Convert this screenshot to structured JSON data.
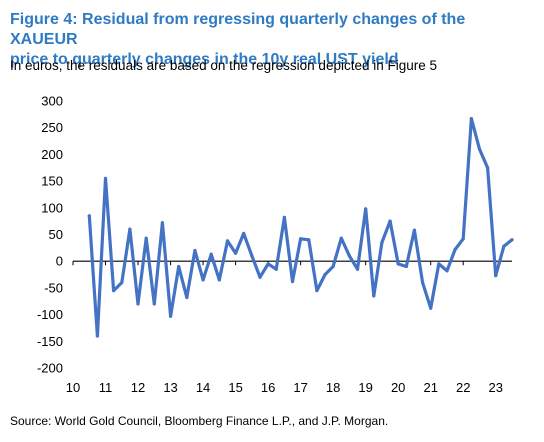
{
  "figure": {
    "title_line1": "Figure 4: Residual from regressing quarterly changes of the XAUEUR",
    "title_line2": "price to quarterly changes in the 10y real UST yield",
    "subtitle": "In euros, the residuals are based on the regression depicted in Figure 5",
    "source": "Source: World Gold Council, Bloomberg Finance L.P., and J.P. Morgan."
  },
  "colors": {
    "title": "#2E7BC4",
    "line": "#4472C4",
    "axis": "#000000"
  },
  "chart_data": {
    "type": "line",
    "title": "",
    "xlabel": "",
    "ylabel": "",
    "ylim": [
      -200,
      300
    ],
    "xlim": [
      10,
      23.5
    ],
    "yticks": [
      300,
      250,
      200,
      150,
      100,
      50,
      0,
      -50,
      -100,
      -150,
      -200
    ],
    "xticks": [
      "10",
      "11",
      "12",
      "13",
      "14",
      "15",
      "16",
      "17",
      "18",
      "19",
      "20",
      "21",
      "22",
      "23"
    ],
    "grid": false,
    "series": [
      {
        "x": [
          10.5,
          10.75,
          11.0,
          11.25,
          11.5,
          11.75,
          12.0,
          12.25,
          12.5,
          12.75,
          13.0,
          13.25,
          13.5,
          13.75,
          14.0,
          14.25,
          14.5,
          14.75,
          15.0,
          15.25,
          15.5,
          15.75,
          16.0,
          16.25,
          16.5,
          16.75,
          17.0,
          17.25,
          17.5,
          17.75,
          18.0,
          18.25,
          18.5,
          18.75,
          19.0,
          19.25,
          19.5,
          19.75,
          20.0,
          20.25,
          20.5,
          20.75,
          21.0,
          21.25,
          21.5,
          21.75,
          22.0,
          22.25,
          22.5,
          22.75,
          23.0,
          23.25,
          23.5
        ],
        "values": [
          85,
          -140,
          155,
          -55,
          -40,
          60,
          -80,
          43,
          -80,
          72,
          -103,
          -10,
          -68,
          20,
          -35,
          13,
          -35,
          38,
          15,
          52,
          10,
          -30,
          -5,
          -15,
          82,
          -38,
          42,
          40,
          -55,
          -25,
          -10,
          43,
          10,
          -15,
          98,
          -65,
          35,
          75,
          -5,
          -10,
          58,
          -40,
          -88,
          -5,
          -18,
          22,
          42,
          267,
          210,
          175,
          -27,
          28,
          40
        ]
      }
    ]
  }
}
